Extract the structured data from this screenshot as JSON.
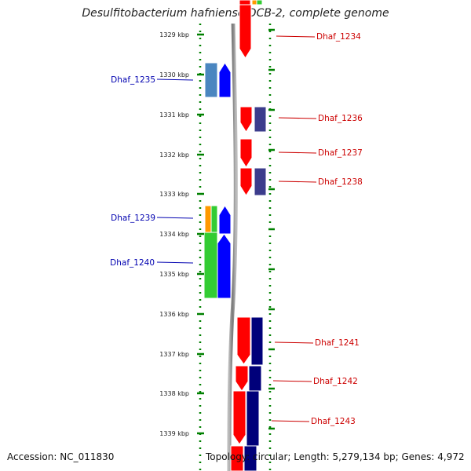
{
  "title": "Desulfitobacterium hafniense DCB-2, complete genome",
  "footer": {
    "accession": "Accession: NC_011830",
    "topology": "Topology: circular; Length: 5,279,134 bp; Genes: 4,972"
  },
  "colors": {
    "red": "#ff0000",
    "blue": "#0000ff",
    "navy": "#00007a",
    "slate": "#3c3c8c",
    "steel": "#4a86c0",
    "green": "#33cc33",
    "orange": "#ff9900",
    "label_left": "#0000b0",
    "label_right": "#cc0000",
    "tick": "#008000"
  },
  "ticks": [
    "1329 kbp",
    "1330 kbp",
    "1331 kbp",
    "1332 kbp",
    "1333 kbp",
    "1334 kbp",
    "1335 kbp",
    "1336 kbp",
    "1337 kbp",
    "1338 kbp",
    "1339 kbp"
  ],
  "genes": [
    {
      "label": "Dhaf_1234",
      "side": "right"
    },
    {
      "label": "Dhaf_1235",
      "side": "left"
    },
    {
      "label": "Dhaf_1236",
      "side": "right"
    },
    {
      "label": "Dhaf_1237",
      "side": "right"
    },
    {
      "label": "Dhaf_1238",
      "side": "right"
    },
    {
      "label": "Dhaf_1239",
      "side": "left"
    },
    {
      "label": "Dhaf_1240",
      "side": "left"
    },
    {
      "label": "Dhaf_1241",
      "side": "right"
    },
    {
      "label": "Dhaf_1242",
      "side": "right"
    },
    {
      "label": "Dhaf_1243",
      "side": "right"
    }
  ]
}
